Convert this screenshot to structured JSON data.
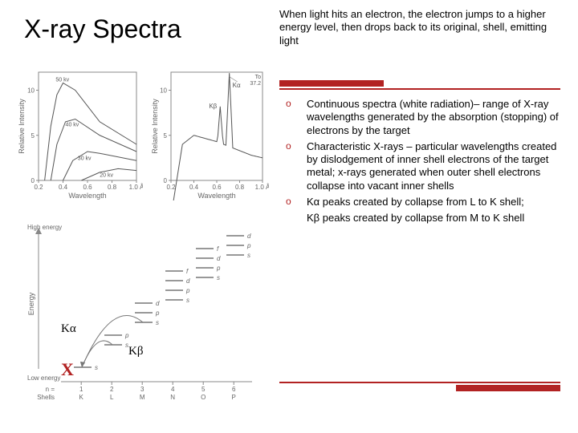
{
  "title": "X-ray Spectra",
  "intro": "When light hits an electron, the electron jumps to a higher energy level, then drops back to its original, shell,  emitting light",
  "bullets": [
    "Continuous spectra (white radiation)– range of X-ray wavelengths generated by the absorption (stopping) of electrons by the target",
    "Characteristic X-rays – particular wavelengths created by dislodgement of inner shell electrons of the target metal; x-rays generated when outer shell electrons collapse into vacant inner shells",
    "Kα peaks created by collapse from L to K shell;"
  ],
  "bullet_tail": "Kβ peaks created by collapse from M to K shell",
  "bullet_marker": "o",
  "colors": {
    "accent": "#b22222",
    "text": "#000000",
    "axis": "#666666",
    "bg": "#ffffff"
  },
  "fig1": {
    "type": "line",
    "xaxis": "Wavelength",
    "yaxis": "Relative Intensity",
    "xticks": [
      "0.2",
      "0.4",
      "0.6",
      "0.8",
      "1.0 Å"
    ],
    "yticks": [
      "0",
      "5",
      "10"
    ],
    "xlim": [
      0.2,
      1.0
    ],
    "ylim": [
      0,
      12
    ],
    "line_color": "#555555",
    "line_width": 1,
    "curve_labels": [
      "50 kv",
      "40 kv",
      "30 kv",
      "20 kv"
    ],
    "curves": [
      [
        [
          0.25,
          0
        ],
        [
          0.3,
          6
        ],
        [
          0.35,
          9.5
        ],
        [
          0.4,
          10.8
        ],
        [
          0.5,
          10
        ],
        [
          0.7,
          6.5
        ],
        [
          1.0,
          4
        ]
      ],
      [
        [
          0.3,
          0
        ],
        [
          0.35,
          4
        ],
        [
          0.42,
          6.5
        ],
        [
          0.5,
          6.8
        ],
        [
          0.7,
          5
        ],
        [
          1.0,
          3.2
        ]
      ],
      [
        [
          0.4,
          0
        ],
        [
          0.48,
          2.2
        ],
        [
          0.6,
          3.2
        ],
        [
          0.7,
          3.0
        ],
        [
          1.0,
          2.2
        ]
      ],
      [
        [
          0.55,
          0
        ],
        [
          0.7,
          0.9
        ],
        [
          0.85,
          1.3
        ],
        [
          1.0,
          1.1
        ]
      ]
    ],
    "label_fontsize": 8,
    "tick_fontsize": 8
  },
  "fig2": {
    "type": "line",
    "xaxis": "Wavelength",
    "yaxis": "Relative Intensity",
    "xticks": [
      "0.2",
      "0.4",
      "0.6",
      "0.8",
      "1.0 Å"
    ],
    "yticks": [
      "0",
      "5",
      "10"
    ],
    "xlim": [
      0.2,
      1.0
    ],
    "ylim": [
      0,
      12
    ],
    "line_color": "#555555",
    "line_width": 1,
    "base_curve": [
      [
        0.25,
        0
      ],
      [
        0.3,
        4
      ],
      [
        0.4,
        5
      ],
      [
        0.6,
        4.3
      ],
      [
        0.9,
        2.8
      ],
      [
        1.0,
        2.5
      ]
    ],
    "peaks": [
      {
        "x": 0.63,
        "h": 8.2,
        "w": 0.025,
        "label": "Kβ"
      },
      {
        "x": 0.71,
        "h": 11.9,
        "w": 0.03,
        "label": "Kα"
      }
    ],
    "top_right_label": "To 37.2",
    "label_fontsize": 8,
    "tick_fontsize": 8
  },
  "fig3": {
    "type": "energy-level-diagram",
    "y_label": "Energy",
    "high_label": "High energy",
    "low_label": "Low energy",
    "shells_label": "Shells",
    "n_label": "n =",
    "shells": [
      "K",
      "L",
      "M",
      "N",
      "O",
      "P"
    ],
    "n_values": [
      "1",
      "2",
      "3",
      "4",
      "5",
      "6"
    ],
    "sublevel_groups": [
      {
        "col": 0,
        "labels": [
          "s"
        ]
      },
      {
        "col": 1,
        "labels": [
          "s",
          "p"
        ]
      },
      {
        "col": 2,
        "labels": [
          "s",
          "p",
          "d"
        ]
      },
      {
        "col": 3,
        "labels": [
          "s",
          "p",
          "d",
          "f"
        ]
      },
      {
        "col": 4,
        "labels": [
          "s",
          "p",
          "d",
          "f"
        ]
      },
      {
        "col": 5,
        "labels": [
          "s",
          "p",
          "d"
        ]
      }
    ],
    "line_color": "#888888",
    "text_color": "#666666",
    "k_alpha_arrow": {
      "from_col": 1,
      "to_col": 0
    },
    "k_beta_arrow": {
      "from_col": 2,
      "to_col": 0
    }
  },
  "annotations": {
    "k_alpha": "Kα",
    "k_beta": "Kβ",
    "x_mark": "X"
  }
}
